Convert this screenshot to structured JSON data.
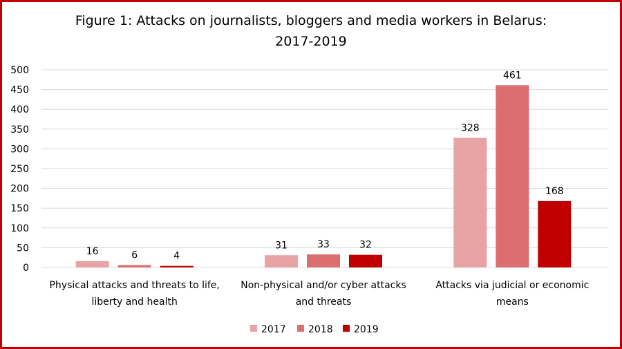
{
  "chart_data": {
    "type": "bar",
    "title": [
      "Figure 1: Attacks on journalists, bloggers and media workers in Belarus:",
      "2017-2019"
    ],
    "categories": [
      [
        "Physical attacks and threats to life,",
        "liberty and health"
      ],
      [
        "Non-physical and/or cyber attacks",
        "and threats"
      ],
      [
        "Attacks via judicial or economic",
        "means"
      ]
    ],
    "series": [
      {
        "name": "2017",
        "color": "#e8a3a5",
        "values": [
          16,
          31,
          328
        ]
      },
      {
        "name": "2018",
        "color": "#dc6e70",
        "values": [
          6,
          33,
          461
        ]
      },
      {
        "name": "2019",
        "color": "#c00000",
        "values": [
          4,
          32,
          168
        ]
      }
    ],
    "ylim": [
      0,
      500
    ],
    "yticks": [
      0,
      50,
      100,
      150,
      200,
      250,
      300,
      350,
      400,
      450,
      500
    ],
    "grid": true,
    "legend": "bottom",
    "xlabel": "",
    "ylabel": ""
  }
}
